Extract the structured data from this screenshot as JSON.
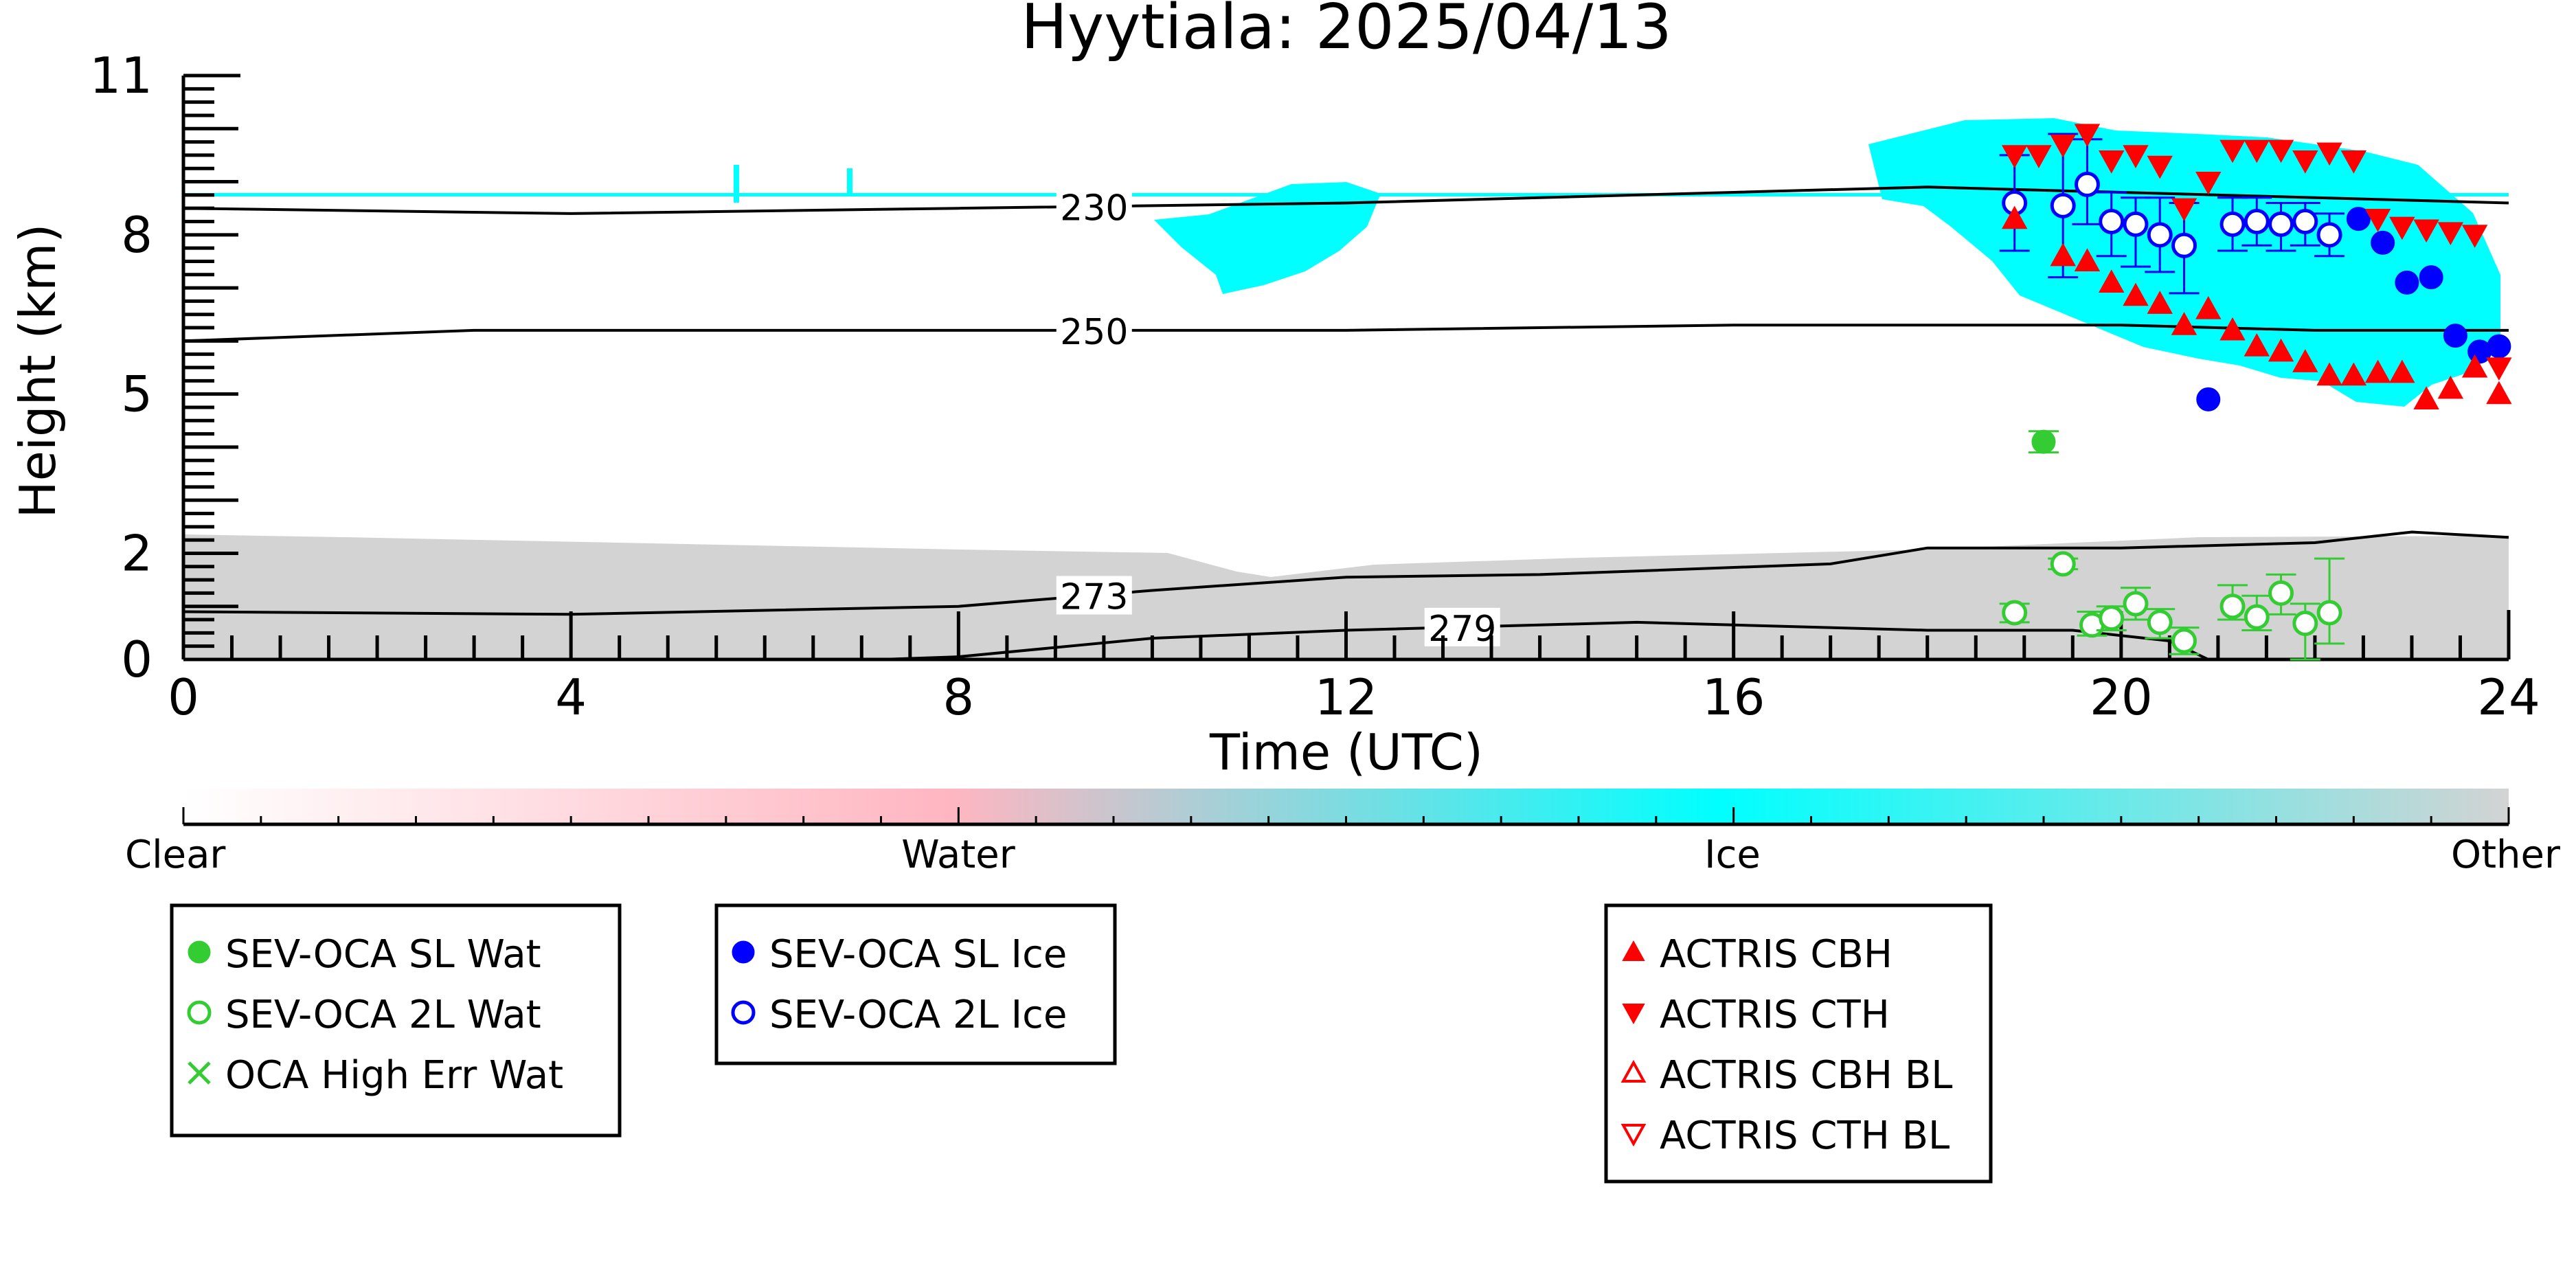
{
  "chart_data": {
    "type": "scatter",
    "title": "Hyytiala: 2025/04/13",
    "xlabel": "Time (UTC)",
    "ylabel": "Height (km)",
    "xlim": [
      0,
      24
    ],
    "ylim": [
      0,
      11
    ],
    "x_ticks": [
      0,
      4,
      8,
      12,
      16,
      20,
      24
    ],
    "x_tick_labels": [
      "0",
      "4",
      "8",
      "12",
      "16",
      "20",
      "24"
    ],
    "y_ticks": [
      0,
      2,
      5,
      8,
      11
    ],
    "y_tick_labels": [
      "0",
      "2",
      "5",
      "8",
      "11"
    ],
    "background_classification": {
      "colorbar_labels": [
        "Clear",
        "Water",
        "Ice",
        "Other"
      ],
      "colors": {
        "clear": "#ffffff",
        "water": "#ffb6c1",
        "ice": "#00ffff",
        "other": "#d3d3d3"
      }
    },
    "temperature_contours": [
      {
        "label": "230",
        "label_x": 9.4,
        "points": [
          [
            0,
            8.5
          ],
          [
            4,
            8.4
          ],
          [
            8,
            8.5
          ],
          [
            12,
            8.6
          ],
          [
            16,
            8.8
          ],
          [
            18,
            8.9
          ],
          [
            20,
            8.8
          ],
          [
            24,
            8.6
          ]
        ]
      },
      {
        "label": "250",
        "label_x": 9.4,
        "points": [
          [
            0,
            6.0
          ],
          [
            3,
            6.2
          ],
          [
            6,
            6.2
          ],
          [
            9,
            6.2
          ],
          [
            12,
            6.2
          ],
          [
            16,
            6.3
          ],
          [
            20,
            6.3
          ],
          [
            22,
            6.2
          ],
          [
            24,
            6.2
          ]
        ]
      },
      {
        "label": "273",
        "label_x": 9.4,
        "points": [
          [
            0,
            0.9
          ],
          [
            4,
            0.85
          ],
          [
            8,
            1.0
          ],
          [
            10,
            1.3
          ],
          [
            12,
            1.55
          ],
          [
            14,
            1.6
          ],
          [
            17,
            1.8
          ],
          [
            18,
            2.1
          ],
          [
            20,
            2.1
          ],
          [
            22,
            2.2
          ],
          [
            23,
            2.4
          ],
          [
            24,
            2.3
          ]
        ]
      },
      {
        "label": "279",
        "label_x": 13.2,
        "points": [
          [
            7.2,
            0
          ],
          [
            8,
            0.05
          ],
          [
            10,
            0.4
          ],
          [
            12,
            0.55
          ],
          [
            14,
            0.65
          ],
          [
            15,
            0.7
          ],
          [
            16,
            0.65
          ],
          [
            18,
            0.55
          ],
          [
            19.5,
            0.55
          ],
          [
            20.5,
            0.35
          ],
          [
            20.9,
            0
          ]
        ]
      }
    ],
    "series": [
      {
        "name": "SEV-OCA SL Wat",
        "color": "#33cc33",
        "marker": "filled-circle",
        "points": [
          {
            "x": 19.2,
            "y": 4.1,
            "yerr": [
              3.9,
              4.3
            ]
          }
        ]
      },
      {
        "name": "SEV-OCA 2L Wat",
        "color": "#33cc33",
        "marker": "open-circle",
        "points": [
          {
            "x": 18.9,
            "y": 0.88,
            "yerr": [
              0.7,
              1.05
            ]
          },
          {
            "x": 19.4,
            "y": 1.8,
            "yerr": [
              1.7,
              1.9
            ]
          },
          {
            "x": 19.7,
            "y": 0.65,
            "yerr": [
              0.45,
              0.9
            ]
          },
          {
            "x": 19.9,
            "y": 0.78,
            "yerr": [
              0.55,
              1.0
            ]
          },
          {
            "x": 20.15,
            "y": 1.05,
            "yerr": [
              0.75,
              1.35
            ]
          },
          {
            "x": 20.4,
            "y": 0.7,
            "yerr": [
              0.4,
              0.95
            ]
          },
          {
            "x": 20.65,
            "y": 0.35,
            "yerr": [
              0.1,
              0.6
            ]
          },
          {
            "x": 21.15,
            "y": 1.0,
            "yerr": [
              0.75,
              1.4
            ]
          },
          {
            "x": 21.4,
            "y": 0.8,
            "yerr": [
              0.55,
              1.2
            ]
          },
          {
            "x": 21.65,
            "y": 1.25,
            "yerr": [
              0.85,
              1.6
            ]
          },
          {
            "x": 21.9,
            "y": 0.68,
            "yerr": [
              0.0,
              1.05
            ]
          },
          {
            "x": 22.15,
            "y": 0.88,
            "yerr": [
              0.3,
              1.9
            ]
          }
        ]
      },
      {
        "name": "OCA High Err Wat",
        "color": "#33cc33",
        "marker": "x",
        "points": []
      },
      {
        "name": "SEV-OCA SL Ice",
        "color": "#0000ff",
        "marker": "filled-circle",
        "points": [
          {
            "x": 20.9,
            "y": 4.9
          },
          {
            "x": 22.45,
            "y": 8.3
          },
          {
            "x": 22.7,
            "y": 7.85
          },
          {
            "x": 22.95,
            "y": 7.1
          },
          {
            "x": 23.2,
            "y": 7.2
          },
          {
            "x": 23.45,
            "y": 6.1
          },
          {
            "x": 23.7,
            "y": 5.8
          },
          {
            "x": 23.9,
            "y": 5.9
          }
        ]
      },
      {
        "name": "SEV-OCA 2L Ice",
        "color": "#0000ff",
        "marker": "open-circle",
        "points": [
          {
            "x": 18.9,
            "y": 8.6,
            "yerr": [
              7.7,
              9.5
            ]
          },
          {
            "x": 19.4,
            "y": 8.55,
            "yerr": [
              7.2,
              9.9
            ]
          },
          {
            "x": 19.65,
            "y": 8.95,
            "yerr": [
              8.2,
              9.8
            ]
          },
          {
            "x": 19.9,
            "y": 8.25,
            "yerr": [
              7.6,
              8.8
            ]
          },
          {
            "x": 20.15,
            "y": 8.2,
            "yerr": [
              7.4,
              8.7
            ]
          },
          {
            "x": 20.4,
            "y": 8.0,
            "yerr": [
              7.3,
              8.7
            ]
          },
          {
            "x": 20.65,
            "y": 7.8,
            "yerr": [
              6.9,
              8.6
            ]
          },
          {
            "x": 21.15,
            "y": 8.2,
            "yerr": [
              7.7,
              8.7
            ]
          },
          {
            "x": 21.4,
            "y": 8.25,
            "yerr": [
              7.8,
              8.7
            ]
          },
          {
            "x": 21.65,
            "y": 8.2,
            "yerr": [
              7.7,
              8.6
            ]
          },
          {
            "x": 21.9,
            "y": 8.25,
            "yerr": [
              7.8,
              8.6
            ]
          },
          {
            "x": 22.15,
            "y": 8.0,
            "yerr": [
              7.6,
              8.4
            ]
          }
        ]
      },
      {
        "name": "ACTRIS CBH",
        "color": "#ff0000",
        "marker": "triangle-up",
        "points": [
          {
            "x": 18.9,
            "y": 8.3
          },
          {
            "x": 19.4,
            "y": 7.6
          },
          {
            "x": 19.65,
            "y": 7.5
          },
          {
            "x": 19.9,
            "y": 7.1
          },
          {
            "x": 20.15,
            "y": 6.85
          },
          {
            "x": 20.4,
            "y": 6.7
          },
          {
            "x": 20.65,
            "y": 6.3
          },
          {
            "x": 20.9,
            "y": 6.6
          },
          {
            "x": 21.15,
            "y": 6.2
          },
          {
            "x": 21.4,
            "y": 5.9
          },
          {
            "x": 21.65,
            "y": 5.8
          },
          {
            "x": 21.9,
            "y": 5.6
          },
          {
            "x": 22.15,
            "y": 5.35
          },
          {
            "x": 22.4,
            "y": 5.35
          },
          {
            "x": 22.65,
            "y": 5.4
          },
          {
            "x": 22.9,
            "y": 5.4
          },
          {
            "x": 23.15,
            "y": 4.9
          },
          {
            "x": 23.4,
            "y": 5.1
          },
          {
            "x": 23.65,
            "y": 5.5
          },
          {
            "x": 23.9,
            "y": 5.0
          }
        ]
      },
      {
        "name": "ACTRIS CTH",
        "color": "#ff0000",
        "marker": "triangle-down",
        "points": [
          {
            "x": 18.9,
            "y": 9.5
          },
          {
            "x": 19.15,
            "y": 9.5
          },
          {
            "x": 19.4,
            "y": 9.7
          },
          {
            "x": 19.65,
            "y": 9.9
          },
          {
            "x": 19.9,
            "y": 9.4
          },
          {
            "x": 20.15,
            "y": 9.5
          },
          {
            "x": 20.4,
            "y": 9.3
          },
          {
            "x": 20.65,
            "y": 8.5
          },
          {
            "x": 20.9,
            "y": 9.0
          },
          {
            "x": 21.15,
            "y": 9.6
          },
          {
            "x": 21.4,
            "y": 9.6
          },
          {
            "x": 21.65,
            "y": 9.6
          },
          {
            "x": 21.9,
            "y": 9.4
          },
          {
            "x": 22.15,
            "y": 9.55
          },
          {
            "x": 22.4,
            "y": 9.4
          },
          {
            "x": 22.65,
            "y": 8.3
          },
          {
            "x": 22.9,
            "y": 8.15
          },
          {
            "x": 23.15,
            "y": 8.1
          },
          {
            "x": 23.4,
            "y": 8.05
          },
          {
            "x": 23.65,
            "y": 8.0
          },
          {
            "x": 23.9,
            "y": 5.5
          }
        ]
      },
      {
        "name": "ACTRIS CBH BL",
        "color": "#ff0000",
        "marker": "open-triangle-up",
        "points": []
      },
      {
        "name": "ACTRIS CTH BL",
        "color": "#ff0000",
        "marker": "open-triangle-down",
        "points": []
      }
    ]
  }
}
